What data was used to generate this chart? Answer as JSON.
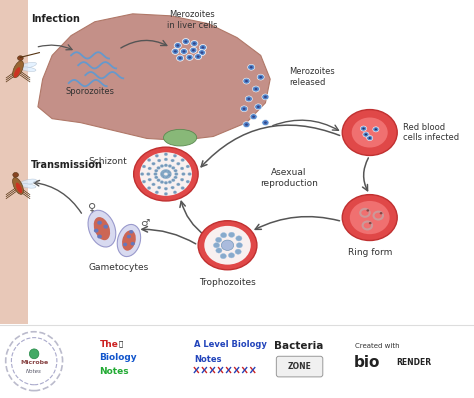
{
  "bg_color": "#f5e8e0",
  "left_strip_color": "#e8c8b8",
  "liver_color": "#c49088",
  "liver_edge": "#b07868",
  "gall_color": "#88b878",
  "rbc_color": "#e04848",
  "rbc_edge": "#c03030",
  "rbc_inner": "#f07070",
  "dot_color": "#5588cc",
  "dot_edge": "#3366aa",
  "arrow_color": "#555555",
  "label_fontsize": 6.5,
  "small_fontsize": 6.0,
  "labels": {
    "infection": "Infection",
    "transmission": "Transmission",
    "sporozoites": "Sporozoites",
    "merozoites_liver": "Merozoites\nin liver cells",
    "merozoites_released": "Merozoites\nreleased",
    "red_blood": "Red blood\ncells infected",
    "schizont": "Schizont",
    "asexual": "Asexual\nreproduction",
    "ring_form": "Ring form",
    "trophozoites": "Trophozoites",
    "gametocytes": "Gametocytes"
  }
}
